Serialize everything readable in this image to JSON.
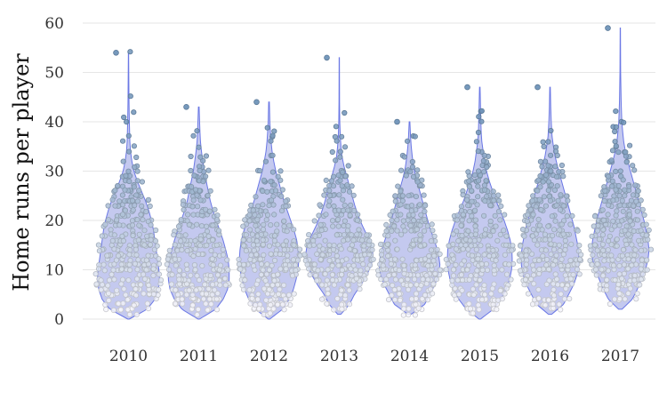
{
  "chart_data": {
    "type": "violin",
    "title": "",
    "xlabel": "",
    "ylabel": "Home runs per player",
    "ylim": [
      0,
      60
    ],
    "yticks": [
      0,
      10,
      20,
      30,
      40,
      50,
      60
    ],
    "grid": true,
    "legend": "none",
    "categories": [
      "2010",
      "2011",
      "2012",
      "2013",
      "2014",
      "2015",
      "2016",
      "2017"
    ],
    "series": [
      {
        "name": "2010",
        "min": 0,
        "max": 54,
        "n_points": 300,
        "mode": 8,
        "profile": [
          [
            0,
            0.02
          ],
          [
            2,
            0.55
          ],
          [
            4,
            0.78
          ],
          [
            6,
            0.88
          ],
          [
            8,
            0.92
          ],
          [
            10,
            0.9
          ],
          [
            12,
            0.86
          ],
          [
            14,
            0.82
          ],
          [
            16,
            0.78
          ],
          [
            18,
            0.74
          ],
          [
            20,
            0.68
          ],
          [
            22,
            0.6
          ],
          [
            24,
            0.5
          ],
          [
            26,
            0.38
          ],
          [
            28,
            0.26
          ],
          [
            30,
            0.16
          ],
          [
            32,
            0.1
          ],
          [
            34,
            0.06
          ],
          [
            36,
            0.04
          ],
          [
            40,
            0.025
          ],
          [
            44,
            0.015
          ],
          [
            50,
            0.008
          ],
          [
            54,
            0.004
          ]
        ]
      },
      {
        "name": "2011",
        "min": 0,
        "max": 43,
        "n_points": 290,
        "mode": 8,
        "profile": [
          [
            0,
            0.02
          ],
          [
            2,
            0.5
          ],
          [
            4,
            0.72
          ],
          [
            6,
            0.85
          ],
          [
            8,
            0.9
          ],
          [
            10,
            0.9
          ],
          [
            12,
            0.87
          ],
          [
            14,
            0.8
          ],
          [
            16,
            0.72
          ],
          [
            18,
            0.62
          ],
          [
            20,
            0.52
          ],
          [
            22,
            0.42
          ],
          [
            24,
            0.34
          ],
          [
            26,
            0.28
          ],
          [
            28,
            0.22
          ],
          [
            30,
            0.16
          ],
          [
            32,
            0.12
          ],
          [
            34,
            0.08
          ],
          [
            36,
            0.05
          ],
          [
            38,
            0.035
          ],
          [
            40,
            0.025
          ],
          [
            43,
            0.01
          ]
        ]
      },
      {
        "name": "2012",
        "min": 0,
        "max": 44,
        "n_points": 290,
        "mode": 12,
        "profile": [
          [
            0,
            0.02
          ],
          [
            2,
            0.4
          ],
          [
            4,
            0.6
          ],
          [
            6,
            0.72
          ],
          [
            8,
            0.8
          ],
          [
            10,
            0.86
          ],
          [
            12,
            0.88
          ],
          [
            14,
            0.86
          ],
          [
            16,
            0.82
          ],
          [
            18,
            0.74
          ],
          [
            20,
            0.64
          ],
          [
            22,
            0.54
          ],
          [
            24,
            0.44
          ],
          [
            26,
            0.36
          ],
          [
            28,
            0.28
          ],
          [
            30,
            0.2
          ],
          [
            32,
            0.14
          ],
          [
            34,
            0.09
          ],
          [
            36,
            0.06
          ],
          [
            38,
            0.04
          ],
          [
            40,
            0.025
          ],
          [
            44,
            0.01
          ]
        ]
      },
      {
        "name": "2013",
        "min": 1,
        "max": 53,
        "n_points": 290,
        "mode": 12,
        "profile": [
          [
            1,
            0.05
          ],
          [
            3,
            0.3
          ],
          [
            5,
            0.45
          ],
          [
            7,
            0.65
          ],
          [
            9,
            0.82
          ],
          [
            11,
            0.95
          ],
          [
            13,
            1.0
          ],
          [
            15,
            0.95
          ],
          [
            17,
            0.82
          ],
          [
            19,
            0.68
          ],
          [
            21,
            0.56
          ],
          [
            23,
            0.46
          ],
          [
            25,
            0.38
          ],
          [
            27,
            0.3
          ],
          [
            29,
            0.22
          ],
          [
            31,
            0.14
          ],
          [
            33,
            0.08
          ],
          [
            35,
            0.05
          ],
          [
            37,
            0.03
          ],
          [
            40,
            0.015
          ],
          [
            44,
            0.008
          ],
          [
            53,
            0.004
          ]
        ]
      },
      {
        "name": "2014",
        "min": 1,
        "max": 40,
        "n_points": 280,
        "mode": 10,
        "profile": [
          [
            1,
            0.05
          ],
          [
            3,
            0.45
          ],
          [
            5,
            0.6
          ],
          [
            7,
            0.75
          ],
          [
            9,
            0.86
          ],
          [
            11,
            0.9
          ],
          [
            13,
            0.86
          ],
          [
            15,
            0.78
          ],
          [
            17,
            0.68
          ],
          [
            19,
            0.58
          ],
          [
            21,
            0.5
          ],
          [
            23,
            0.42
          ],
          [
            25,
            0.34
          ],
          [
            27,
            0.26
          ],
          [
            29,
            0.18
          ],
          [
            31,
            0.12
          ],
          [
            33,
            0.08
          ],
          [
            35,
            0.05
          ],
          [
            37,
            0.03
          ],
          [
            40,
            0.01
          ]
        ]
      },
      {
        "name": "2015",
        "min": 0,
        "max": 47,
        "n_points": 300,
        "mode": 12,
        "profile": [
          [
            0,
            0.02
          ],
          [
            2,
            0.4
          ],
          [
            4,
            0.62
          ],
          [
            6,
            0.78
          ],
          [
            8,
            0.88
          ],
          [
            10,
            0.94
          ],
          [
            12,
            0.96
          ],
          [
            14,
            0.95
          ],
          [
            16,
            0.9
          ],
          [
            18,
            0.82
          ],
          [
            20,
            0.72
          ],
          [
            22,
            0.6
          ],
          [
            24,
            0.48
          ],
          [
            26,
            0.38
          ],
          [
            28,
            0.28
          ],
          [
            30,
            0.2
          ],
          [
            32,
            0.14
          ],
          [
            34,
            0.1
          ],
          [
            36,
            0.06
          ],
          [
            38,
            0.04
          ],
          [
            42,
            0.025
          ],
          [
            47,
            0.008
          ]
        ]
      },
      {
        "name": "2016",
        "min": 1,
        "max": 47,
        "n_points": 300,
        "mode": 12,
        "profile": [
          [
            1,
            0.05
          ],
          [
            3,
            0.4
          ],
          [
            5,
            0.55
          ],
          [
            7,
            0.7
          ],
          [
            9,
            0.8
          ],
          [
            11,
            0.85
          ],
          [
            13,
            0.85
          ],
          [
            15,
            0.82
          ],
          [
            17,
            0.76
          ],
          [
            19,
            0.7
          ],
          [
            21,
            0.62
          ],
          [
            23,
            0.54
          ],
          [
            25,
            0.46
          ],
          [
            27,
            0.38
          ],
          [
            29,
            0.3
          ],
          [
            31,
            0.22
          ],
          [
            33,
            0.15
          ],
          [
            35,
            0.1
          ],
          [
            37,
            0.06
          ],
          [
            40,
            0.035
          ],
          [
            43,
            0.02
          ],
          [
            47,
            0.008
          ]
        ]
      },
      {
        "name": "2017",
        "min": 2,
        "max": 59,
        "n_points": 310,
        "mode": 14,
        "profile": [
          [
            2,
            0.05
          ],
          [
            4,
            0.35
          ],
          [
            6,
            0.5
          ],
          [
            8,
            0.62
          ],
          [
            10,
            0.74
          ],
          [
            12,
            0.82
          ],
          [
            14,
            0.85
          ],
          [
            16,
            0.82
          ],
          [
            18,
            0.76
          ],
          [
            20,
            0.7
          ],
          [
            22,
            0.62
          ],
          [
            24,
            0.54
          ],
          [
            26,
            0.46
          ],
          [
            28,
            0.38
          ],
          [
            30,
            0.3
          ],
          [
            32,
            0.22
          ],
          [
            34,
            0.15
          ],
          [
            36,
            0.1
          ],
          [
            38,
            0.07
          ],
          [
            40,
            0.045
          ],
          [
            44,
            0.025
          ],
          [
            50,
            0.01
          ],
          [
            59,
            0.004
          ]
        ]
      }
    ],
    "colors": {
      "violin_fill": "#c4c9ef",
      "violin_stroke": "#6b78e5",
      "grid": "#e6e6e6",
      "point_low": "#f4f4fa",
      "point_high": "#6f93b8"
    }
  }
}
